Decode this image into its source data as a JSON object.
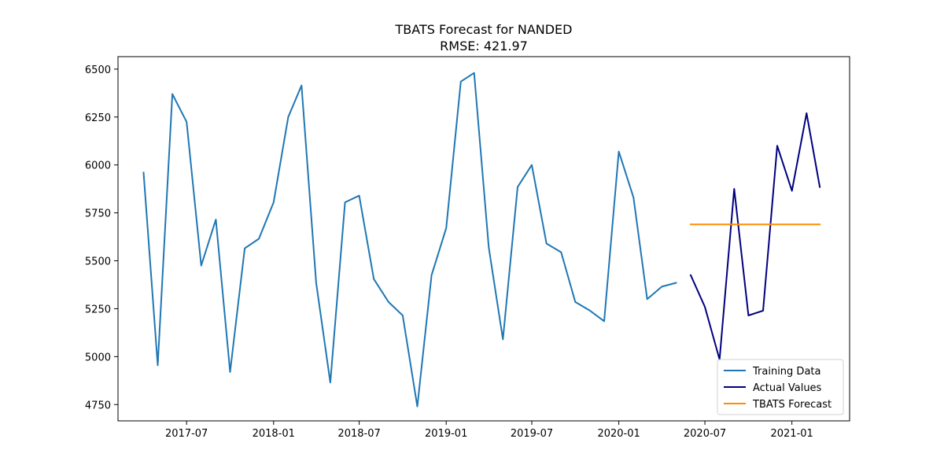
{
  "chart_data": {
    "type": "line",
    "title": "TBATS Forecast for NANDED",
    "subtitle": "RMSE: 421.97",
    "xlabel": "",
    "ylabel": "",
    "xlim": [
      "2017-02-06",
      "2021-05-03"
    ],
    "ylim": [
      4665,
      6565
    ],
    "yticks": [
      4750,
      5000,
      5250,
      5500,
      5750,
      6000,
      6250,
      6500
    ],
    "xticks": [
      "2017-07",
      "2018-01",
      "2018-07",
      "2019-01",
      "2019-07",
      "2020-01",
      "2020-07",
      "2021-01"
    ],
    "grid": false,
    "legend_position": "lower-right",
    "series": [
      {
        "name": "Training Data",
        "color": "#1f77b4",
        "x": [
          "2017-04",
          "2017-05",
          "2017-06",
          "2017-07",
          "2017-08",
          "2017-09",
          "2017-10",
          "2017-11",
          "2017-12",
          "2018-01",
          "2018-02",
          "2018-03",
          "2018-04",
          "2018-05",
          "2018-06",
          "2018-07",
          "2018-08",
          "2018-09",
          "2018-10",
          "2018-11",
          "2018-12",
          "2019-01",
          "2019-02",
          "2019-03",
          "2019-04",
          "2019-05",
          "2019-06",
          "2019-07",
          "2019-08",
          "2019-09",
          "2019-10",
          "2019-11",
          "2019-12",
          "2020-01",
          "2020-02",
          "2020-03",
          "2020-04",
          "2020-05"
        ],
        "y": [
          5960,
          4955,
          6370,
          6225,
          5475,
          5715,
          4920,
          5565,
          5615,
          5805,
          6250,
          6415,
          5385,
          4865,
          5805,
          5840,
          5405,
          5285,
          5215,
          4740,
          5425,
          5670,
          6435,
          6480,
          5570,
          5090,
          5885,
          6000,
          5590,
          5545,
          5285,
          5240,
          5185,
          6070,
          5830,
          5300,
          5365,
          5385
        ]
      },
      {
        "name": "Actual Values",
        "color": "#000080",
        "x": [
          "2020-06",
          "2020-07",
          "2020-08",
          "2020-09",
          "2020-10",
          "2020-11",
          "2020-12",
          "2021-01",
          "2021-02",
          "2021-03"
        ],
        "y": [
          5425,
          5260,
          4985,
          5875,
          5215,
          5240,
          6100,
          5865,
          6270,
          5885
        ]
      },
      {
        "name": "TBATS Forecast",
        "color": "#ff8c00",
        "x": [
          "2020-06",
          "2020-07",
          "2020-08",
          "2020-09",
          "2020-10",
          "2020-11",
          "2020-12",
          "2021-01",
          "2021-02",
          "2021-03"
        ],
        "y": [
          5690,
          5690,
          5690,
          5690,
          5690,
          5690,
          5690,
          5690,
          5690,
          5690
        ]
      }
    ]
  }
}
